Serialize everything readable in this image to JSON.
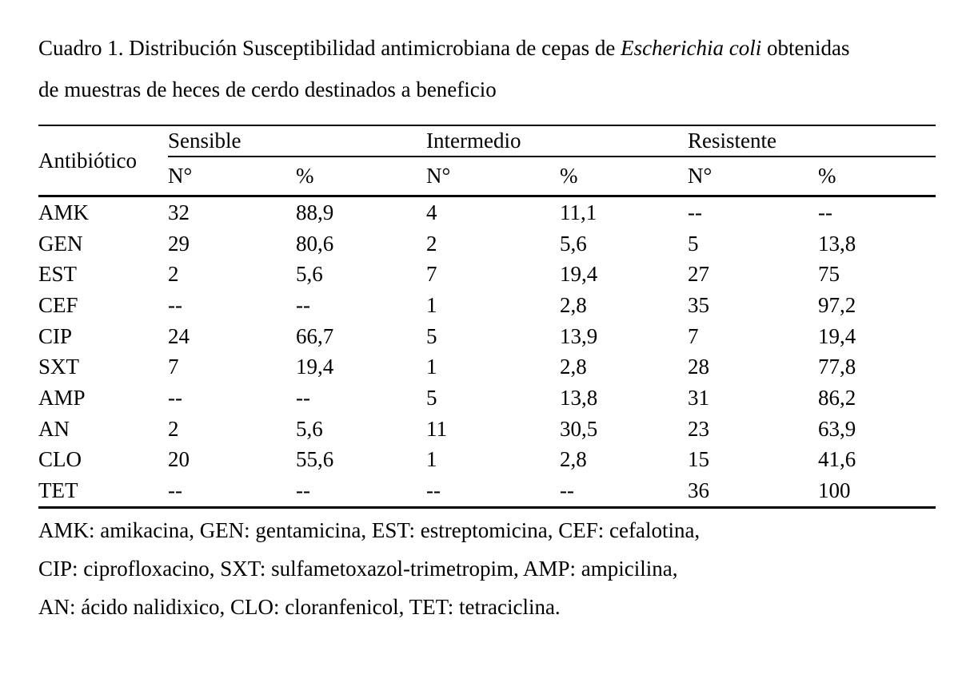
{
  "page": {
    "colors": {
      "background": "#ffffff",
      "text": "#000000",
      "rule": "#000000"
    },
    "caption": {
      "line1_pre": "Cuadro 1. Distribución Susceptibilidad antimicrobiana de cepas de ",
      "line1_italic": "Escherichia coli",
      "line1_post": " obtenidas",
      "line2": "de muestras de heces de cerdo destinados a beneficio"
    },
    "table": {
      "antibiotic_column_header": "Antibiótico",
      "groups": [
        {
          "label": "Sensible"
        },
        {
          "label": "Intermedio"
        },
        {
          "label": "Resistente"
        }
      ],
      "subheaders": [
        "N°",
        "%",
        "N°",
        "%",
        "N°",
        "%"
      ],
      "rows": [
        {
          "cells": [
            "AMK",
            "32",
            "88,9",
            "4",
            "11,1",
            "--",
            "--"
          ]
        },
        {
          "cells": [
            "GEN",
            "29",
            "80,6",
            "2",
            "5,6",
            "5",
            "13,8"
          ]
        },
        {
          "cells": [
            "EST",
            "2",
            "5,6",
            "7",
            "19,4",
            "27",
            "75"
          ]
        },
        {
          "cells": [
            "CEF",
            "--",
            "--",
            "1",
            "2,8",
            "35",
            "97,2"
          ]
        },
        {
          "cells": [
            "CIP",
            "24",
            "66,7",
            "5",
            "13,9",
            "7",
            "19,4"
          ]
        },
        {
          "cells": [
            "SXT",
            "7",
            "19,4",
            "1",
            "2,8",
            "28",
            "77,8"
          ]
        },
        {
          "cells": [
            "AMP",
            "--",
            "--",
            "5",
            "13,8",
            "31",
            "86,2"
          ]
        },
        {
          "cells": [
            "AN",
            "2",
            "5,6",
            "11",
            "30,5",
            "23",
            "63,9"
          ]
        },
        {
          "cells": [
            "CLO",
            "20",
            "55,6",
            "1",
            "2,8",
            "15",
            "41,6"
          ]
        },
        {
          "cells": [
            "TET",
            "--",
            "--",
            "--",
            "--",
            "36",
            "100"
          ]
        }
      ]
    },
    "footnotes": [
      "AMK: amikacina, GEN: gentamicina, EST: estreptomicina, CEF: cefalotina,",
      "CIP: ciprofloxacino, SXT: sulfametoxazol-trimetropim, AMP: ampicilina,",
      "AN: ácido nalidixico, CLO: cloranfenicol, TET: tetraciclina."
    ]
  }
}
